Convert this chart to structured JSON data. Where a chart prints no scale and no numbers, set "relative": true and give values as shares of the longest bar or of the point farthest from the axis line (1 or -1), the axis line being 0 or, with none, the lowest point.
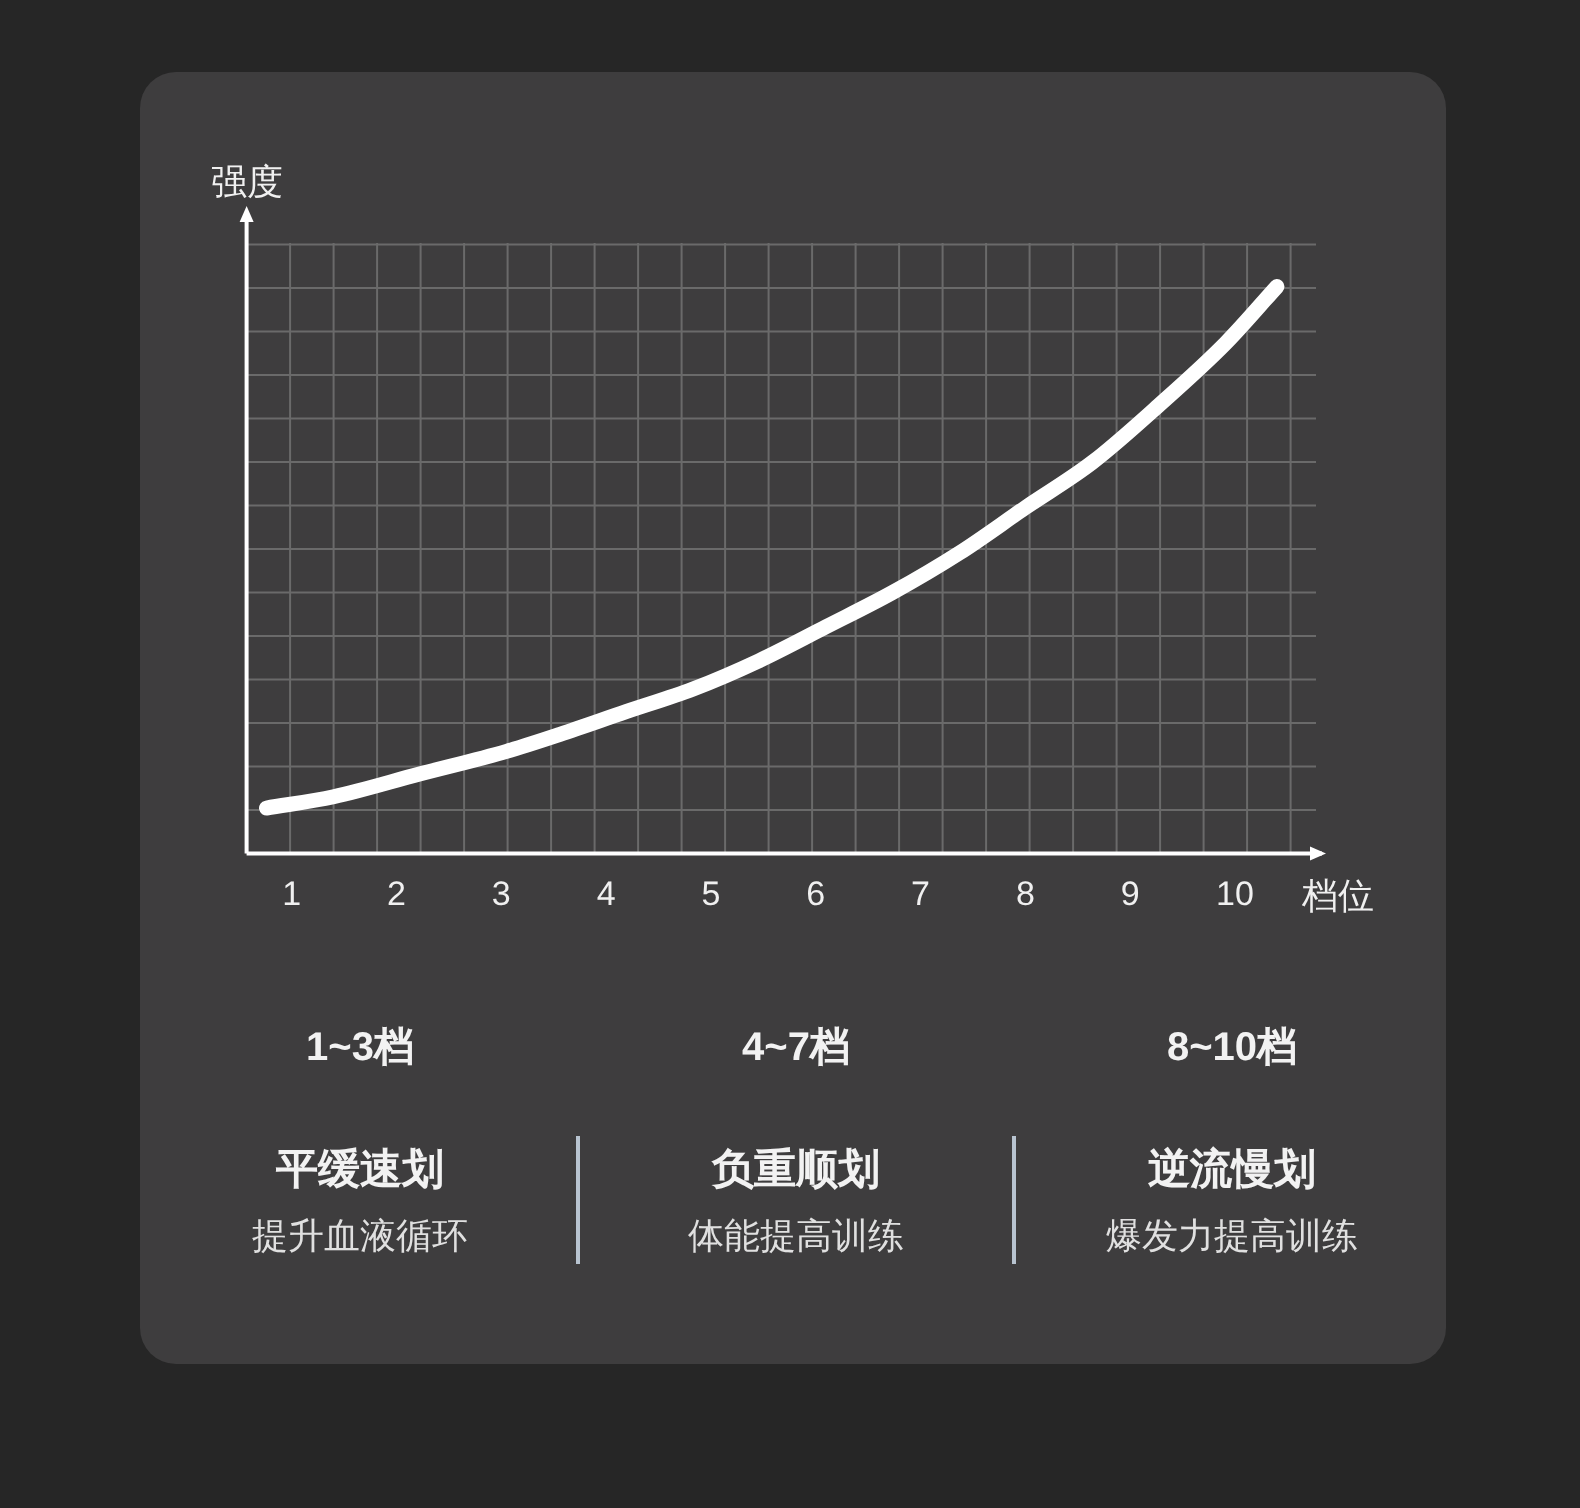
{
  "chart_data": {
    "type": "line",
    "relative": true,
    "xlabel": "档位",
    "ylabel": "强度",
    "x": [
      0.76,
      1.4,
      2.22,
      3.05,
      3.56,
      4.19,
      4.83,
      5.46,
      6.1,
      6.73,
      7.37,
      8.0,
      8.64,
      9.27,
      9.91,
      10.4
    ],
    "series": [
      {
        "color": "#ffffff",
        "values": [
          0.08,
          0.1,
          0.14,
          0.18,
          0.21,
          0.25,
          0.29,
          0.34,
          0.4,
          0.46,
          0.53,
          0.61,
          0.69,
          0.79,
          0.9,
          1
        ]
      }
    ],
    "xlim": [
      0.57,
      10.83
    ],
    "xticks": [
      1,
      2,
      3,
      4,
      5,
      6,
      7,
      8,
      9,
      10
    ],
    "grid": true,
    "annotations": [
      "1~3档",
      "平缓速划",
      "提升血液循环",
      "4~7档",
      "负重顺划",
      "体能提高训练",
      "8~10档",
      "逆流慢划",
      "爆发力提高训练"
    ]
  }
}
